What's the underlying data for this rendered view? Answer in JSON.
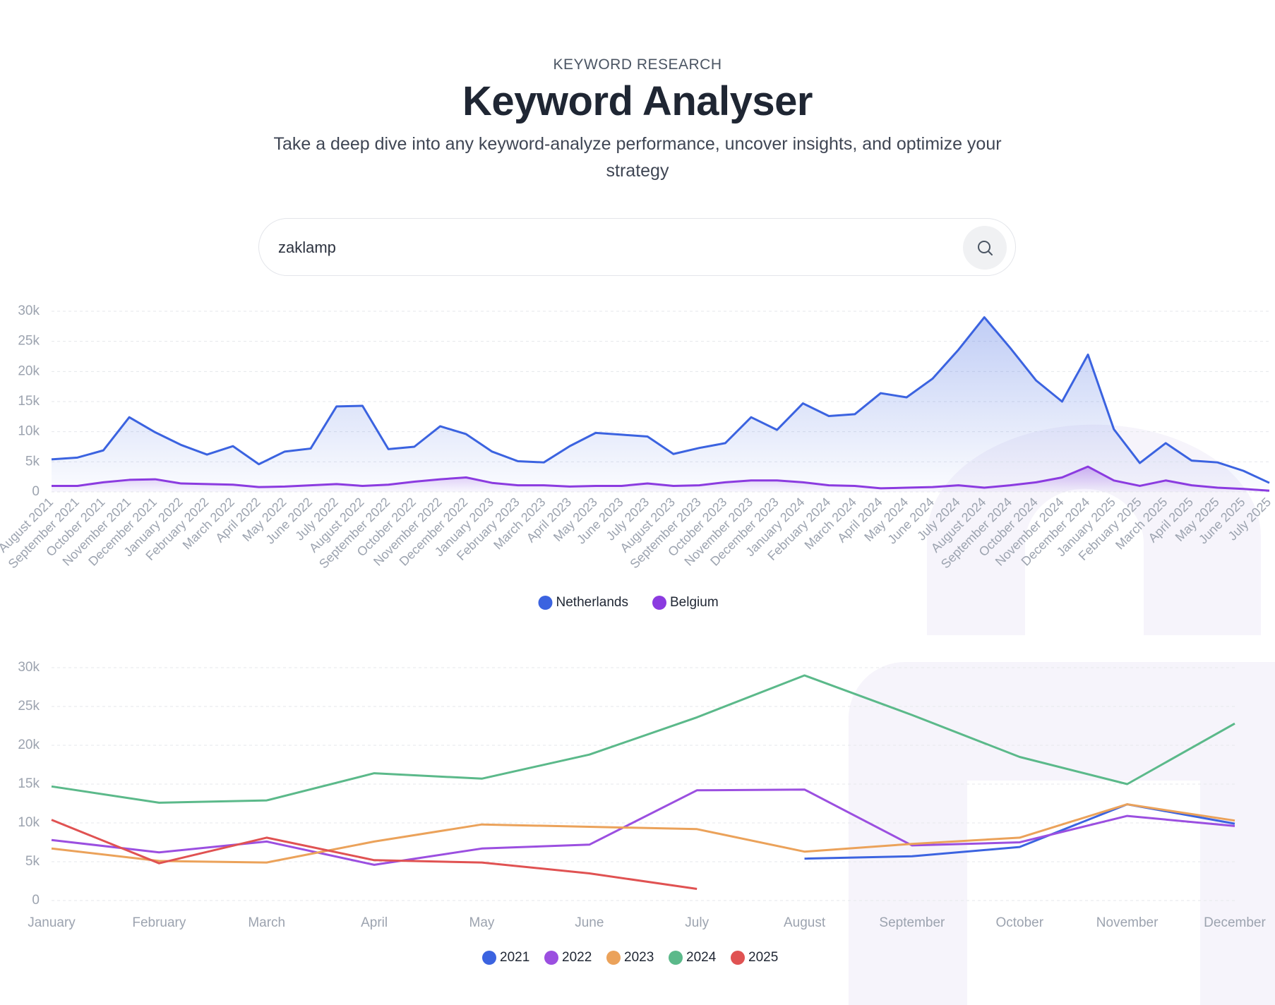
{
  "header": {
    "eyebrow": "KEYWORD RESEARCH",
    "title": "Keyword Analyser",
    "subtitle": "Take a deep dive into any keyword-analyze performance, uncover insights, and optimize your strategy"
  },
  "search": {
    "query": "zaklamp"
  },
  "chart_data": [
    {
      "type": "line",
      "area": true,
      "categories": [
        "August 2021",
        "September 2021",
        "October 2021",
        "November 2021",
        "December 2021",
        "January 2022",
        "February 2022",
        "March 2022",
        "April 2022",
        "May 2022",
        "June 2022",
        "July 2022",
        "August 2022",
        "September 2022",
        "October 2022",
        "November 2022",
        "December 2022",
        "January 2023",
        "February 2023",
        "March 2023",
        "April 2023",
        "May 2023",
        "June 2023",
        "July 2023",
        "August 2023",
        "September 2023",
        "October 2023",
        "November 2023",
        "December 2023",
        "January 2024",
        "February 2024",
        "March 2024",
        "April 2024",
        "May 2024",
        "June 2024",
        "July 2024",
        "August 2024",
        "September 2024",
        "October 2024",
        "November 2024",
        "December 2024",
        "January 2025",
        "February 2025",
        "March 2025",
        "April 2025",
        "May 2025",
        "June 2025",
        "July 2025"
      ],
      "series": [
        {
          "name": "Netherlands",
          "color": "#3b63e0",
          "values": [
            5400,
            5700,
            6900,
            12400,
            9900,
            7800,
            6200,
            7600,
            4600,
            6700,
            7200,
            14200,
            14300,
            7100,
            7500,
            10900,
            9600,
            6700,
            5100,
            4900,
            7600,
            9800,
            9500,
            9200,
            6300,
            7300,
            8100,
            12400,
            10300,
            14700,
            12600,
            12900,
            16400,
            15700,
            18800,
            23600,
            29000,
            23900,
            18500,
            15000,
            22800,
            10400,
            4800,
            8100,
            5200,
            4900,
            3500,
            1500
          ]
        },
        {
          "name": "Belgium",
          "color": "#8b3be0",
          "values": [
            1000,
            1000,
            1600,
            2000,
            2100,
            1400,
            1300,
            1200,
            800,
            900,
            1100,
            1300,
            1000,
            1200,
            1700,
            2100,
            2400,
            1500,
            1100,
            1100,
            900,
            1000,
            1000,
            1400,
            1000,
            1100,
            1600,
            1900,
            1900,
            1600,
            1100,
            1000,
            600,
            700,
            800,
            1100,
            700,
            1100,
            1600,
            2400,
            4200,
            1900,
            1000,
            1900,
            1100,
            700,
            500,
            200
          ]
        }
      ],
      "ylim": [
        0,
        30000
      ],
      "yticks": [
        0,
        {
          "value": 5000,
          "label": "5k"
        },
        {
          "value": 10000,
          "label": "10k"
        },
        {
          "value": 15000,
          "label": "15k"
        },
        {
          "value": 20000,
          "label": "20k"
        },
        {
          "value": 25000,
          "label": "25k"
        },
        {
          "value": 30000,
          "label": "30k"
        }
      ],
      "grid": true,
      "legend": "bottom"
    },
    {
      "type": "line",
      "area": false,
      "categories": [
        "January",
        "February",
        "March",
        "April",
        "May",
        "June",
        "July",
        "August",
        "September",
        "October",
        "November",
        "December"
      ],
      "series": [
        {
          "name": "2021",
          "color": "#3b63e0",
          "values": [
            null,
            null,
            null,
            null,
            null,
            null,
            null,
            5400,
            5700,
            6900,
            12400,
            9900
          ]
        },
        {
          "name": "2022",
          "color": "#9b4fe0",
          "values": [
            7800,
            6200,
            7600,
            4600,
            6700,
            7200,
            14200,
            14300,
            7100,
            7500,
            10900,
            9600
          ]
        },
        {
          "name": "2023",
          "color": "#eba25a",
          "values": [
            6700,
            5100,
            4900,
            7600,
            9800,
            9500,
            9200,
            6300,
            7300,
            8100,
            12400,
            10300
          ]
        },
        {
          "name": "2024",
          "color": "#5bb98a",
          "values": [
            14700,
            12600,
            12900,
            16400,
            15700,
            18800,
            23600,
            29000,
            23900,
            18500,
            15000,
            22800
          ]
        },
        {
          "name": "2025",
          "color": "#e05252",
          "values": [
            10400,
            4800,
            8100,
            5200,
            4900,
            3500,
            1500,
            null,
            null,
            null,
            null,
            null
          ]
        }
      ],
      "ylim": [
        0,
        30000
      ],
      "yticks": [
        0,
        {
          "value": 5000,
          "label": "5k"
        },
        {
          "value": 10000,
          "label": "10k"
        },
        {
          "value": 15000,
          "label": "15k"
        },
        {
          "value": 20000,
          "label": "20k"
        },
        {
          "value": 25000,
          "label": "25k"
        },
        {
          "value": 30000,
          "label": "30k"
        }
      ],
      "grid": true,
      "legend": "bottom"
    }
  ]
}
